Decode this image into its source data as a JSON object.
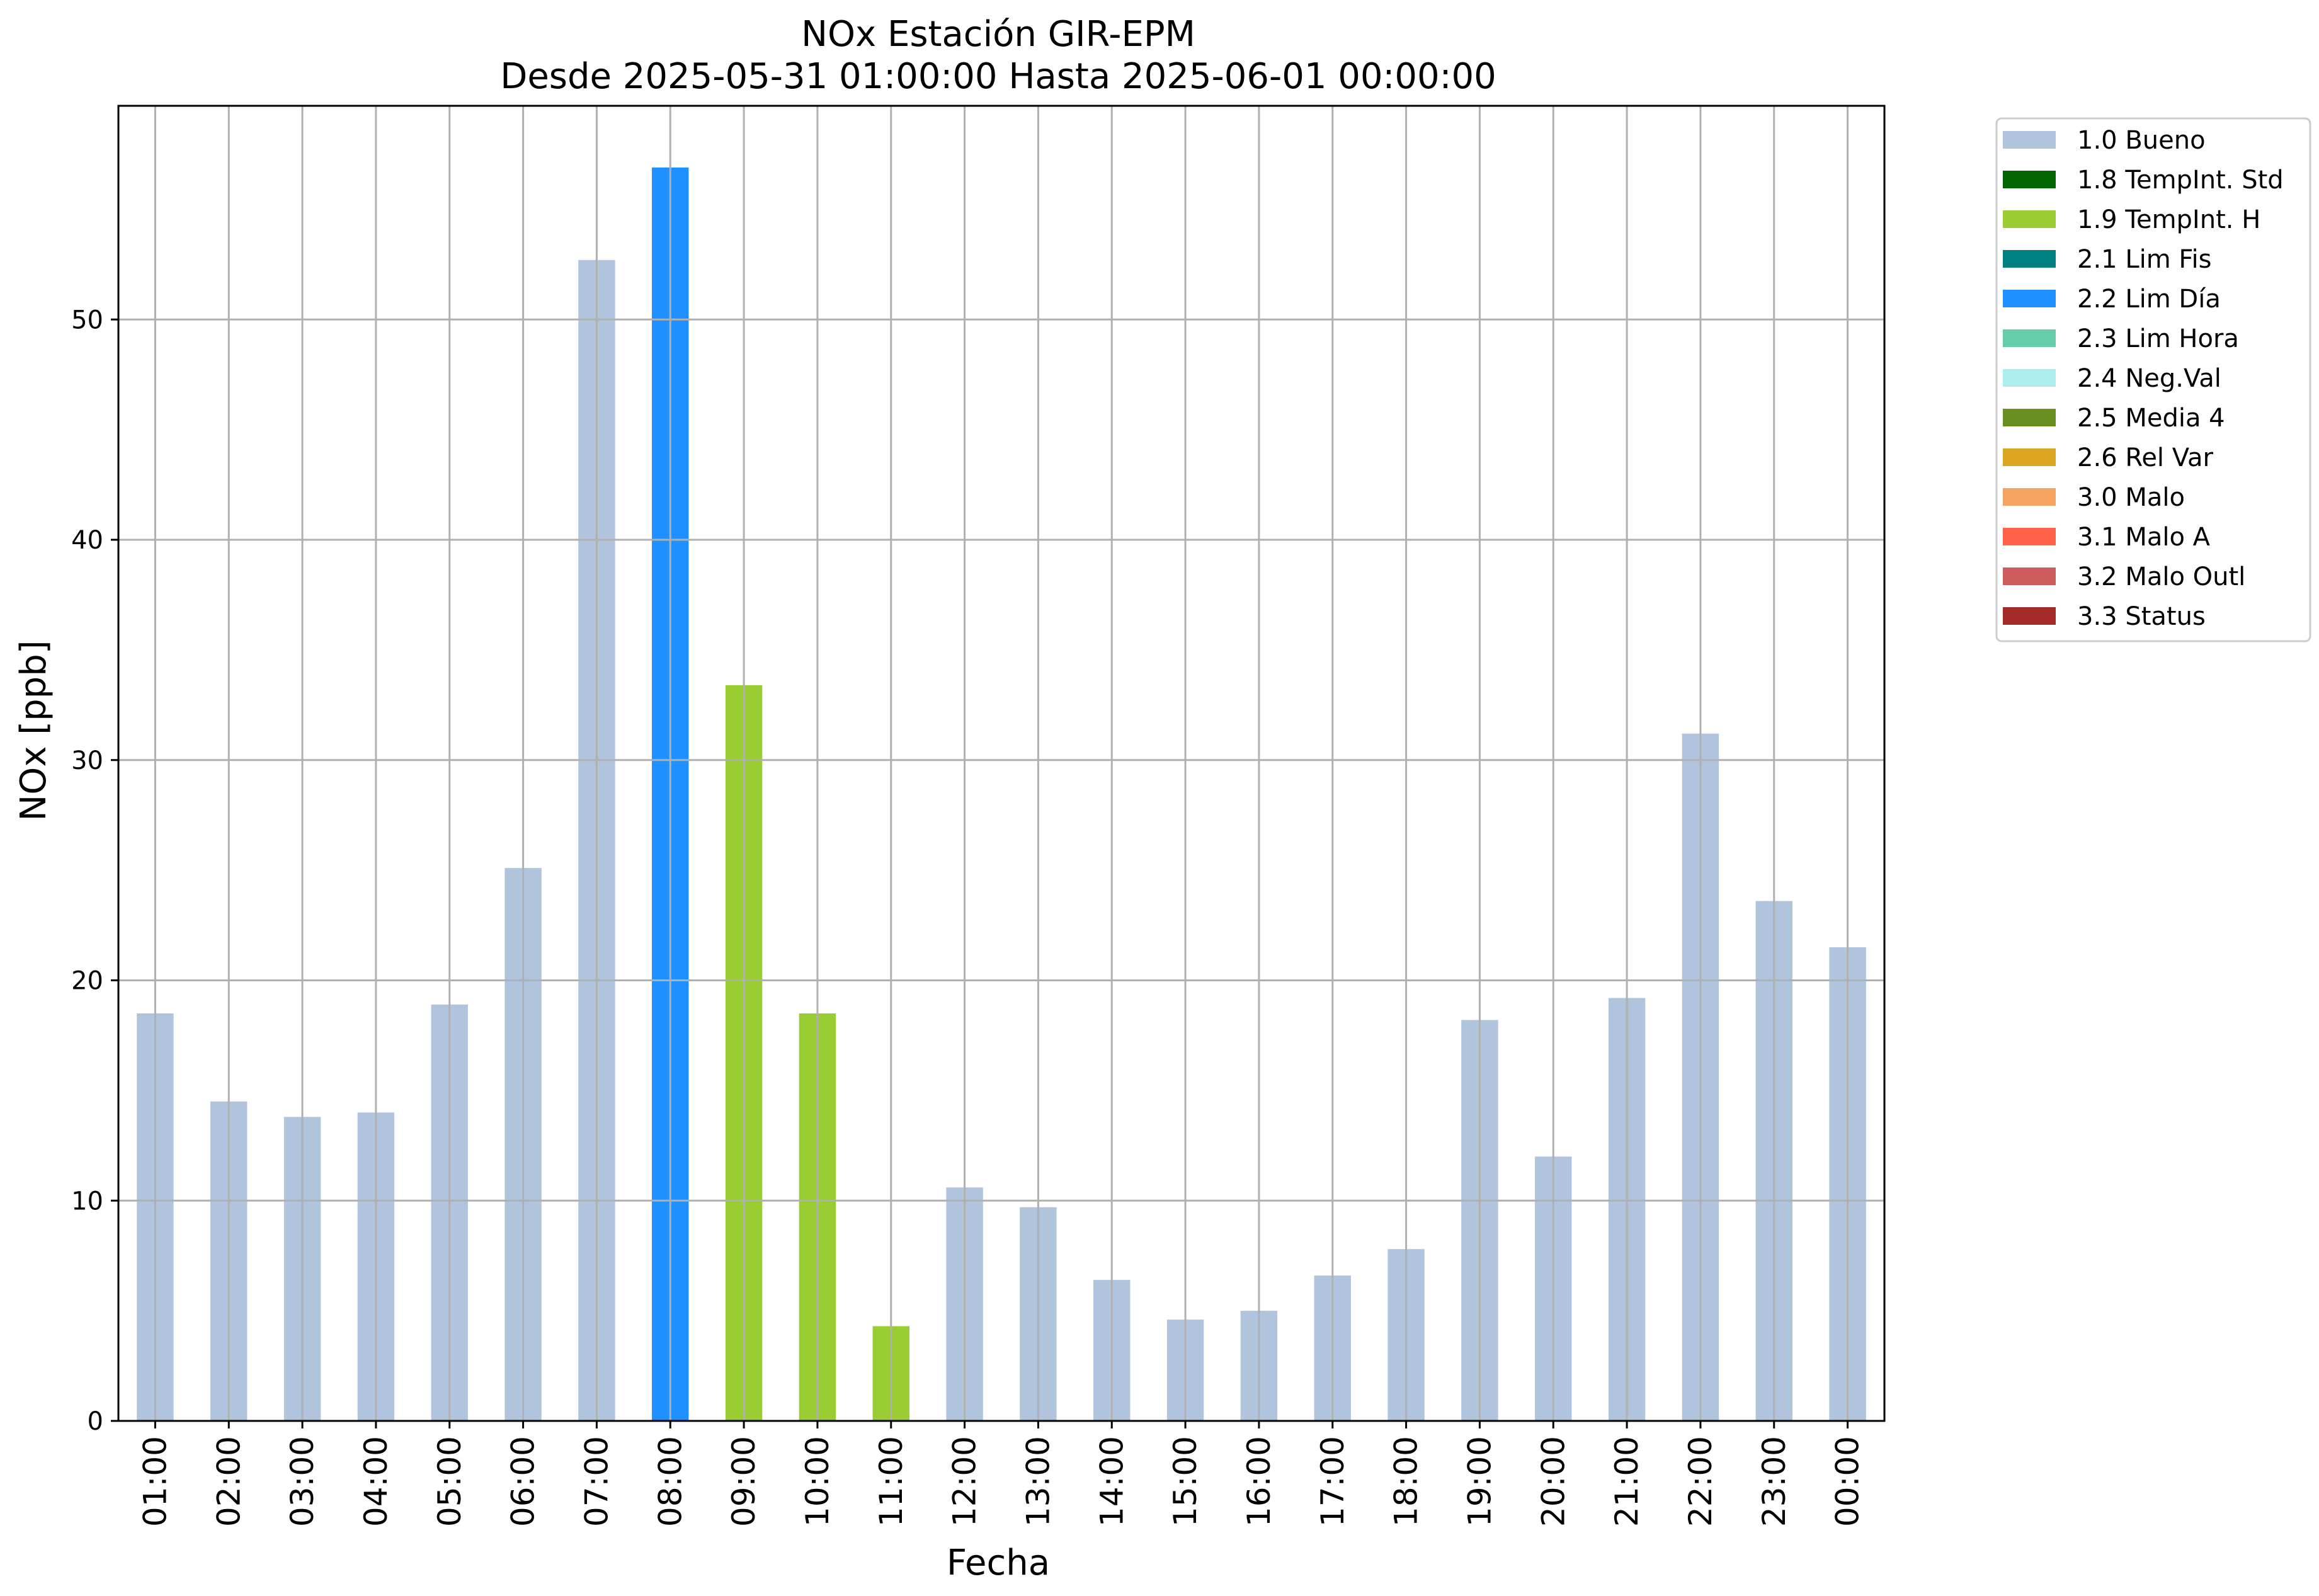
{
  "chart_data": {
    "type": "bar",
    "title": "NOx Estación GIR-EPM",
    "subtitle": "Desde 2025-05-31 01:00:00 Hasta 2025-06-01 00:00:00",
    "xlabel": "Fecha",
    "ylabel": "NOx [ppb]",
    "ylim": [
      0,
      59.7
    ],
    "yticks": [
      0,
      10,
      20,
      30,
      40,
      50
    ],
    "grid": true,
    "legend_position": "outside-top-right",
    "categories": [
      "01:00",
      "02:00",
      "03:00",
      "04:00",
      "05:00",
      "06:00",
      "07:00",
      "08:00",
      "09:00",
      "10:00",
      "11:00",
      "12:00",
      "13:00",
      "14:00",
      "15:00",
      "16:00",
      "17:00",
      "18:00",
      "19:00",
      "20:00",
      "21:00",
      "22:00",
      "23:00",
      "00:00"
    ],
    "values": [
      18.5,
      14.5,
      13.8,
      14.0,
      18.9,
      25.1,
      52.7,
      56.9,
      33.4,
      18.5,
      4.3,
      10.6,
      9.7,
      6.4,
      4.6,
      5.0,
      6.6,
      7.8,
      18.2,
      12.0,
      19.2,
      31.2,
      23.6,
      21.5
    ],
    "flags": [
      "1.0 Bueno",
      "1.0 Bueno",
      "1.0 Bueno",
      "1.0 Bueno",
      "1.0 Bueno",
      "1.0 Bueno",
      "1.0 Bueno",
      "2.2 Lim Día",
      "1.9 TempInt. H",
      "1.9 TempInt. H",
      "1.9 TempInt. H",
      "1.0 Bueno",
      "1.0 Bueno",
      "1.0 Bueno",
      "1.0 Bueno",
      "1.0 Bueno",
      "1.0 Bueno",
      "1.0 Bueno",
      "1.0 Bueno",
      "1.0 Bueno",
      "1.0 Bueno",
      "1.0 Bueno",
      "1.0 Bueno",
      "1.0 Bueno"
    ],
    "legend": [
      {
        "label": "1.0 Bueno",
        "color": "#b0c4de"
      },
      {
        "label": "1.8 TempInt. Std",
        "color": "#006400"
      },
      {
        "label": "1.9 TempInt. H",
        "color": "#9acd32"
      },
      {
        "label": "2.1 Lim Fis",
        "color": "#008080"
      },
      {
        "label": "2.2 Lim Día",
        "color": "#1e90ff"
      },
      {
        "label": "2.3 Lim Hora",
        "color": "#66cdaa"
      },
      {
        "label": "2.4 Neg.Val",
        "color": "#afeeee"
      },
      {
        "label": "2.5 Media 4",
        "color": "#6b8e23"
      },
      {
        "label": "2.6 Rel Var",
        "color": "#daa520"
      },
      {
        "label": "3.0 Malo",
        "color": "#f4a460"
      },
      {
        "label": "3.1 Malo A",
        "color": "#ff6347"
      },
      {
        "label": "3.2 Malo Outl",
        "color": "#cd5c5c"
      },
      {
        "label": "3.3 Status",
        "color": "#a52a2a"
      }
    ]
  }
}
